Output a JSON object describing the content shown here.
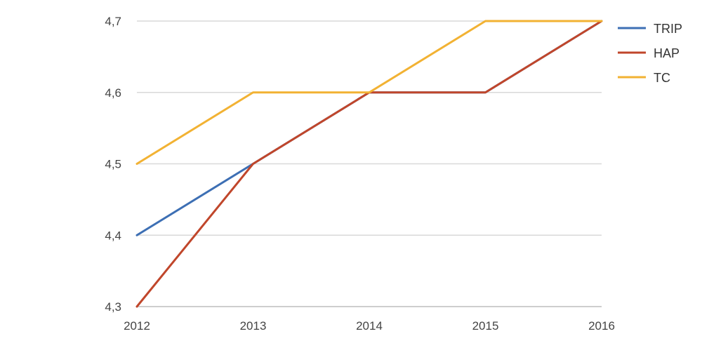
{
  "chart_data": {
    "type": "line",
    "x": [
      "2012",
      "2013",
      "2014",
      "2015",
      "2016"
    ],
    "ylim": [
      4.3,
      4.7
    ],
    "yticks": [
      "4,3",
      "4,4",
      "4,5",
      "4,6",
      "4,7"
    ],
    "yticks_values": [
      4.3,
      4.4,
      4.5,
      4.6,
      4.7
    ],
    "grid": true,
    "legend_position": "right-top",
    "title": "",
    "xlabel": "",
    "ylabel": "",
    "series": [
      {
        "name": "TRIP",
        "color": "#3d6fb4",
        "values": [
          4.4,
          4.5,
          4.6,
          4.6,
          4.7
        ]
      },
      {
        "name": "HAP",
        "color": "#c0462b",
        "values": [
          4.3,
          4.5,
          4.6,
          4.6,
          4.7
        ]
      },
      {
        "name": "TC",
        "color": "#f2b233",
        "values": [
          4.5,
          4.6,
          4.6,
          4.7,
          4.7
        ]
      }
    ]
  }
}
